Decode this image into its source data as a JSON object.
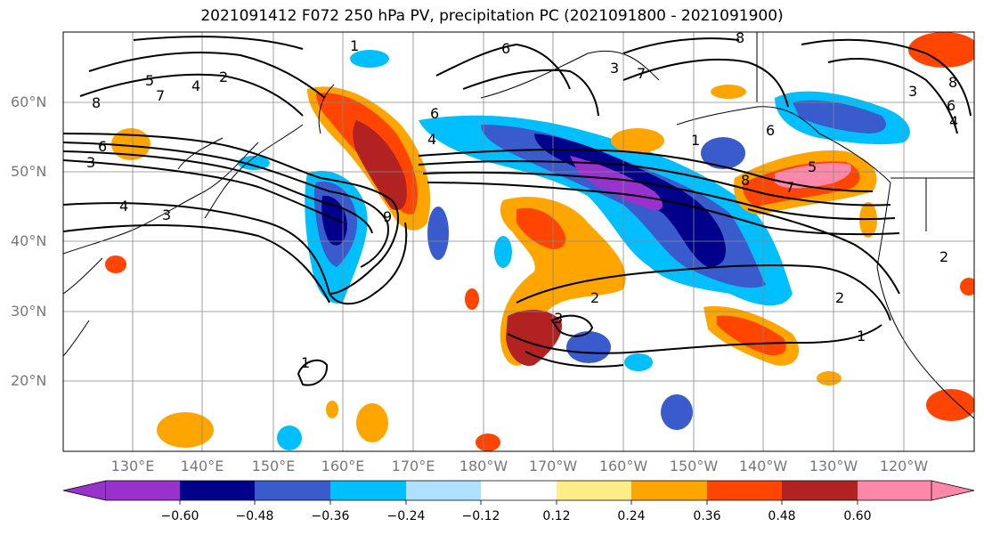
{
  "title": "2021091412 F072 250 hPa PV, precipitation PC (2021091800 - 2021091900)",
  "lat_labels": [
    "60°N",
    "50°N",
    "40°N",
    "30°N",
    "20°N"
  ],
  "lon_labels": [
    "130°E",
    "140°E",
    "150°E",
    "160°E",
    "170°E",
    "180°W",
    "170°W",
    "160°W",
    "150°W",
    "140°W",
    "130°W",
    "120°W"
  ],
  "colorbar": {
    "ticks": [
      "−0.60",
      "−0.48",
      "−0.36",
      "−0.24",
      "−0.12",
      "0.12",
      "0.24",
      "0.36",
      "0.48",
      "0.60"
    ],
    "colors": [
      "#9932CC",
      "#00008B",
      "#3A5BCC",
      "#00BFFF",
      "#B0E0FF",
      "#FFFFFF",
      "#FFEE88",
      "#FFA500",
      "#FF4500",
      "#B22222",
      "#FF88AA"
    ]
  },
  "contour_labels": [
    "1",
    "2",
    "3",
    "4",
    "5",
    "6",
    "7",
    "8",
    "9"
  ],
  "map_extent": {
    "lon": [
      120,
      250
    ],
    "lat": [
      10,
      70
    ]
  }
}
